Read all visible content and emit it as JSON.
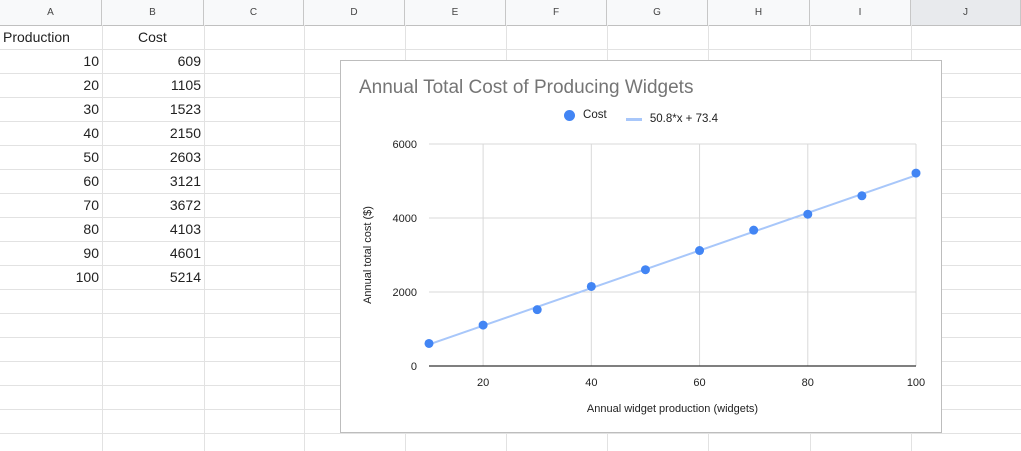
{
  "columns": [
    "A",
    "B",
    "C",
    "D",
    "E",
    "F",
    "G",
    "H",
    "I",
    "J"
  ],
  "selected_column": "J",
  "table": {
    "headers": [
      "Production",
      "Cost"
    ],
    "rows": [
      [
        10,
        609
      ],
      [
        20,
        1105
      ],
      [
        30,
        1523
      ],
      [
        40,
        2150
      ],
      [
        50,
        2603
      ],
      [
        60,
        3121
      ],
      [
        70,
        3672
      ],
      [
        80,
        4103
      ],
      [
        90,
        4601
      ],
      [
        100,
        5214
      ]
    ]
  },
  "chart_data": {
    "type": "scatter",
    "title": "Annual Total Cost of Producing Widgets",
    "xlabel": "Annual widget production (widgets)",
    "ylabel": "Annual total cost ($)",
    "x": [
      10,
      20,
      30,
      40,
      50,
      60,
      70,
      80,
      90,
      100
    ],
    "series": [
      {
        "name": "Cost",
        "values": [
          609,
          1105,
          1523,
          2150,
          2603,
          3121,
          3672,
          4103,
          4601,
          5214
        ],
        "color": "#4285f4"
      }
    ],
    "trendline": {
      "name": "50.8*x + 73.4",
      "slope": 50.8,
      "intercept": 73.4,
      "color": "#a8c7fa"
    },
    "xticks": [
      20,
      40,
      60,
      80,
      100
    ],
    "yticks": [
      0,
      2000,
      4000,
      6000
    ],
    "xlim": [
      10,
      100
    ],
    "ylim": [
      0,
      6000
    ],
    "grid": true,
    "legend": "top"
  }
}
